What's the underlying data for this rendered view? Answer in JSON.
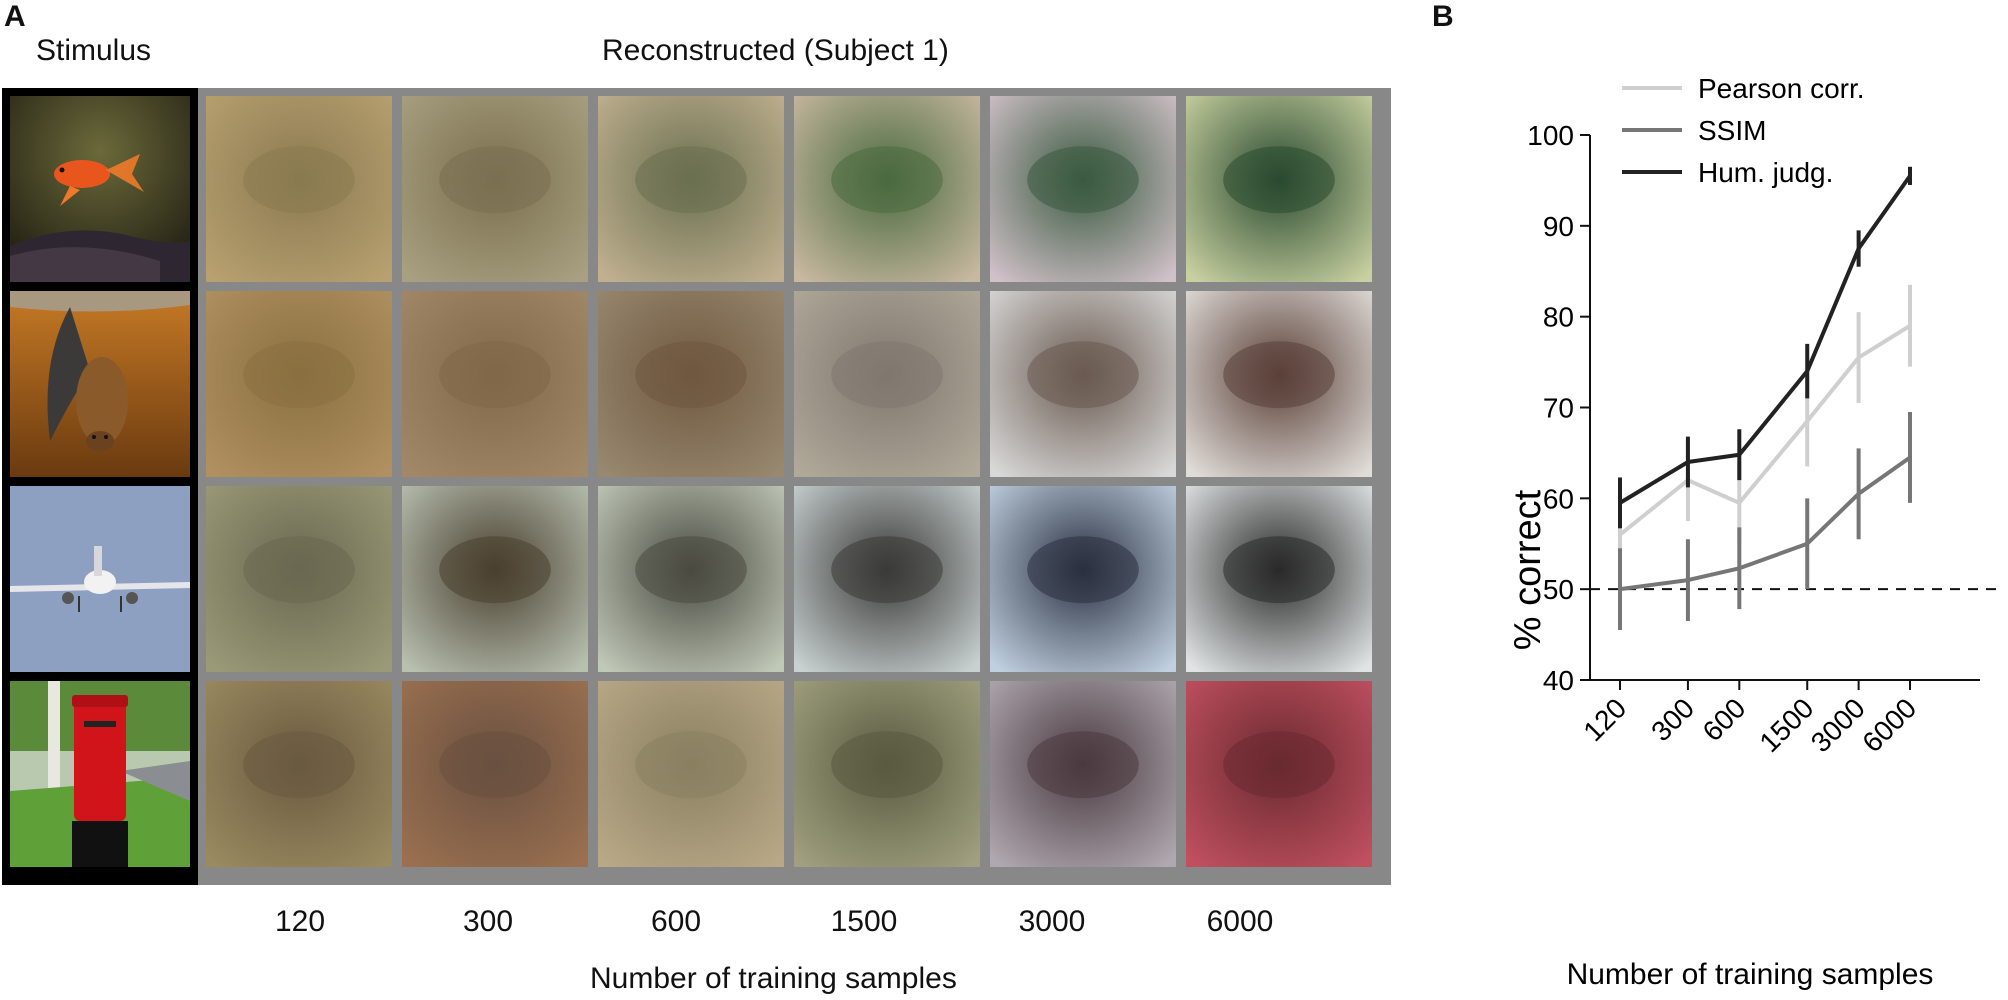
{
  "panel_a": {
    "letter": "A",
    "stimulus_header": "Stimulus",
    "recon_header": "Reconstructed (Subject 1)",
    "xlabel": "Number of training samples",
    "columns": [
      "120",
      "300",
      "600",
      "1500",
      "3000",
      "6000"
    ],
    "rows": [
      "goldfish",
      "bat",
      "airplane",
      "postbox"
    ]
  },
  "panel_b": {
    "letter": "B"
  },
  "chart_data": {
    "type": "line",
    "x": [
      120,
      300,
      600,
      1500,
      3000,
      6000
    ],
    "xticklabels": [
      "120",
      "300",
      "600",
      "1500",
      "3000",
      "6000"
    ],
    "xlabel": "Number of training samples",
    "ylabel": "% correct",
    "ylim": [
      40,
      100
    ],
    "yticks": [
      40,
      50,
      60,
      70,
      80,
      90,
      100
    ],
    "xscale": "log",
    "reference_line": {
      "y": 50,
      "style": "dashed",
      "color": "#111111"
    },
    "legend": "top-left",
    "series": [
      {
        "name": "Pearson corr.",
        "color": "#cfcfcf",
        "values": [
          56,
          62,
          59.5,
          68.5,
          75.5,
          79
        ],
        "err": [
          4.5,
          4.5,
          4.5,
          5,
          5,
          4.5
        ]
      },
      {
        "name": "SSIM",
        "color": "#767676",
        "values": [
          50,
          51,
          52.3,
          55,
          60.5,
          64.5
        ],
        "err": [
          4.5,
          4.5,
          4.5,
          5,
          5,
          5
        ]
      },
      {
        "name": "Hum. judg.",
        "color": "#222222",
        "values": [
          59.5,
          64,
          64.8,
          74,
          87.5,
          95.5
        ],
        "err": [
          2.8,
          2.8,
          2.8,
          3,
          2,
          1
        ]
      }
    ]
  }
}
